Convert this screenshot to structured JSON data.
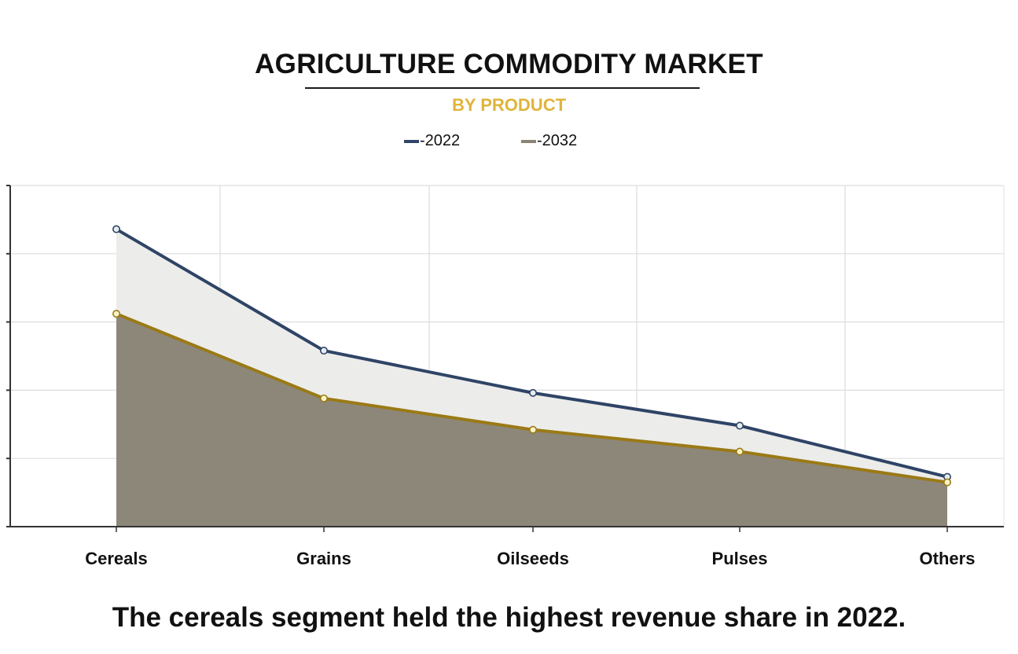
{
  "header": {
    "title": "AGRICULTURE COMMODITY MARKET",
    "subtitle": "BY PRODUCT",
    "subtitle_color": "#e0b43a"
  },
  "legend": [
    {
      "label": "-2022",
      "color": "#2f4466"
    },
    {
      "label": "-2032",
      "color": "#8a8475"
    }
  ],
  "chart_data": {
    "type": "area",
    "title": "AGRICULTURE COMMODITY MARKET",
    "subtitle": "BY PRODUCT",
    "categories": [
      "Cereals",
      "Grains",
      "Oilseeds",
      "Pulses",
      "Others"
    ],
    "series": [
      {
        "name": "-2022",
        "values": [
          4.36,
          2.58,
          1.96,
          1.48,
          0.73
        ],
        "line_color": "#2f4466",
        "fill_color": "#ececea",
        "marker_fill": "#e8ecf0"
      },
      {
        "name": "-2032",
        "values": [
          3.12,
          1.88,
          1.42,
          1.1,
          0.65
        ],
        "line_color": "#9a7a16",
        "fill_color": "#8d877a",
        "marker_fill": "#fbf3c6"
      }
    ],
    "ylim": [
      0,
      5
    ],
    "y_gridlines": 5,
    "grid": true,
    "y_tick_labels_shown": false,
    "legend_position": "top-center",
    "xlabel": "",
    "ylabel": ""
  },
  "caption": "The cereals segment held the highest revenue share in 2022."
}
